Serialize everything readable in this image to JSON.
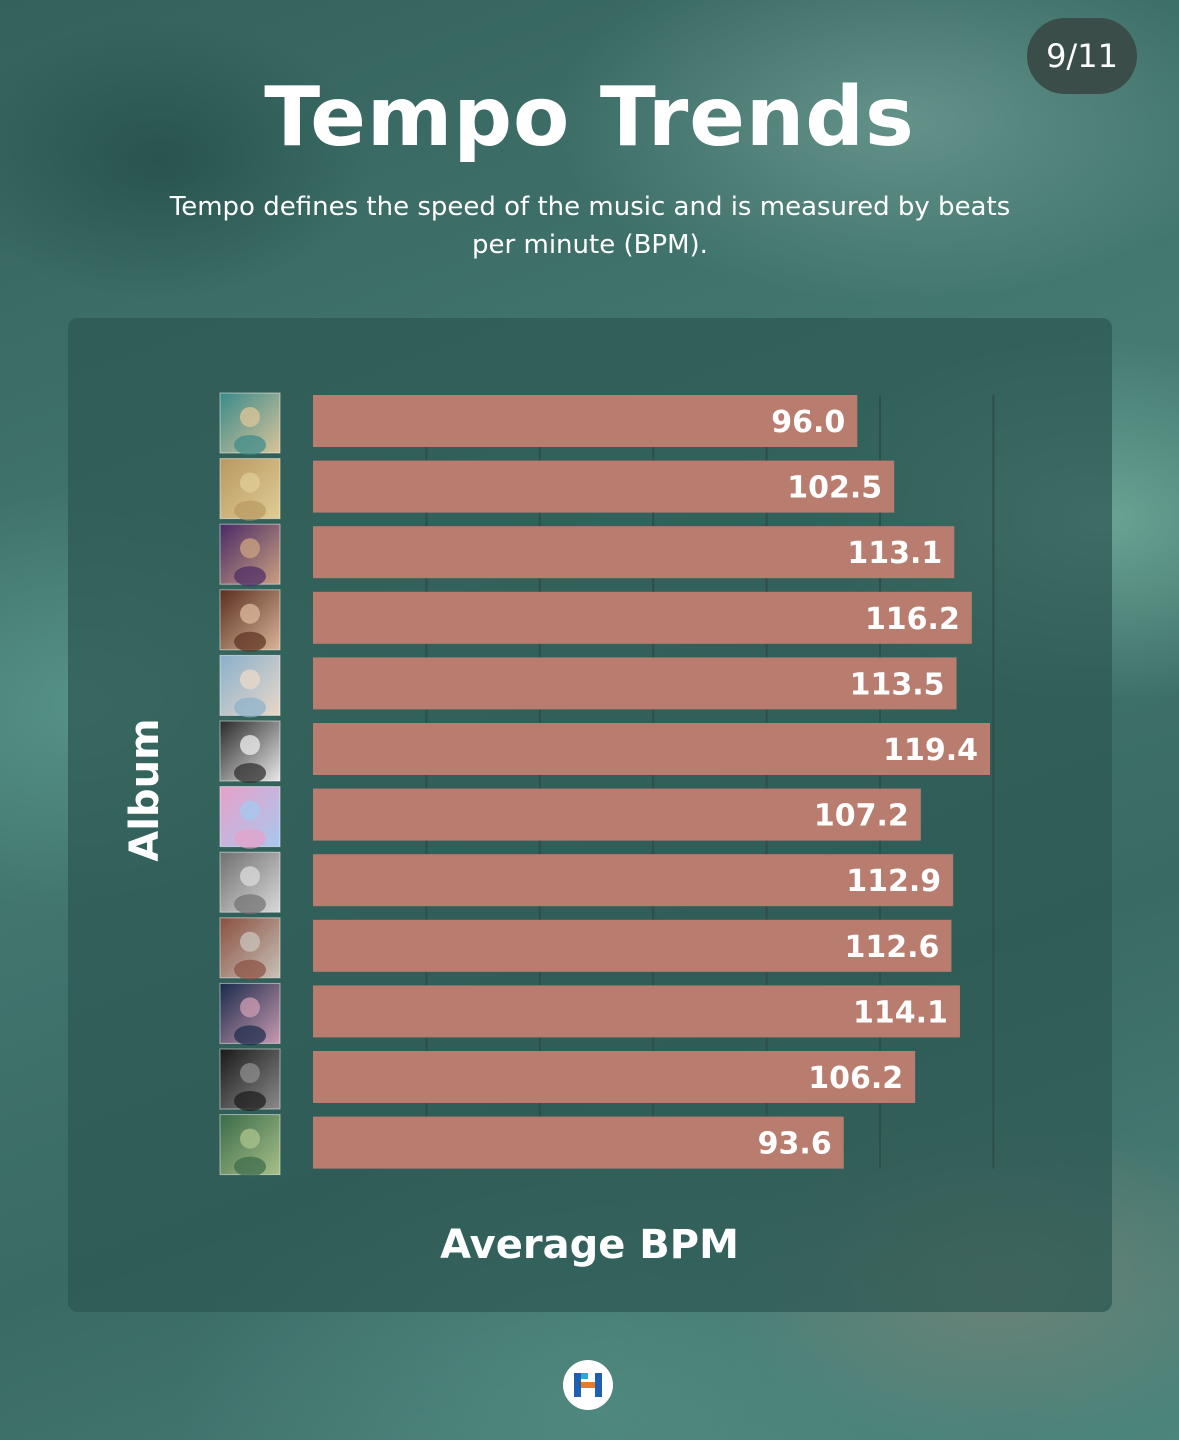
{
  "page_counter": "9/11",
  "title": "Tempo Trends",
  "subtitle": "Tempo defines the speed of the music and is measured by beats per minute (BPM).",
  "chart_data": {
    "type": "bar",
    "orientation": "horizontal",
    "xlabel": "Average BPM",
    "ylabel": "Album",
    "xlim": [
      0,
      120
    ],
    "grid": true,
    "bar_color": "#b87d6f",
    "categories": [
      "",
      "",
      "",
      "",
      "",
      "",
      "",
      "",
      "",
      "",
      "",
      ""
    ],
    "values": [
      96.0,
      102.5,
      113.1,
      116.2,
      113.5,
      119.4,
      107.2,
      112.9,
      112.6,
      114.1,
      106.2,
      93.6
    ],
    "value_labels": [
      "96.0",
      "102.5",
      "113.1",
      "116.2",
      "113.5",
      "119.4",
      "107.2",
      "112.9",
      "112.6",
      "114.1",
      "106.2",
      "93.6"
    ],
    "album_cover_colors": [
      [
        "#3a8a8a",
        "#d8c49a"
      ],
      [
        "#b89860",
        "#e0cc96"
      ],
      [
        "#4a2a66",
        "#c9a080"
      ],
      [
        "#5a3020",
        "#d8b498"
      ],
      [
        "#8ab0cc",
        "#e8d8c8"
      ],
      [
        "#2a2a2a",
        "#e8e8e8"
      ],
      [
        "#e8a0c8",
        "#a8c8ee"
      ],
      [
        "#707070",
        "#d8d8d8"
      ],
      [
        "#8a5040",
        "#c8c0b8"
      ],
      [
        "#1a2a4a",
        "#c89ab0"
      ],
      [
        "#1a1a1a",
        "#8a8a8a"
      ],
      [
        "#3a6a4a",
        "#a8c088"
      ]
    ]
  }
}
